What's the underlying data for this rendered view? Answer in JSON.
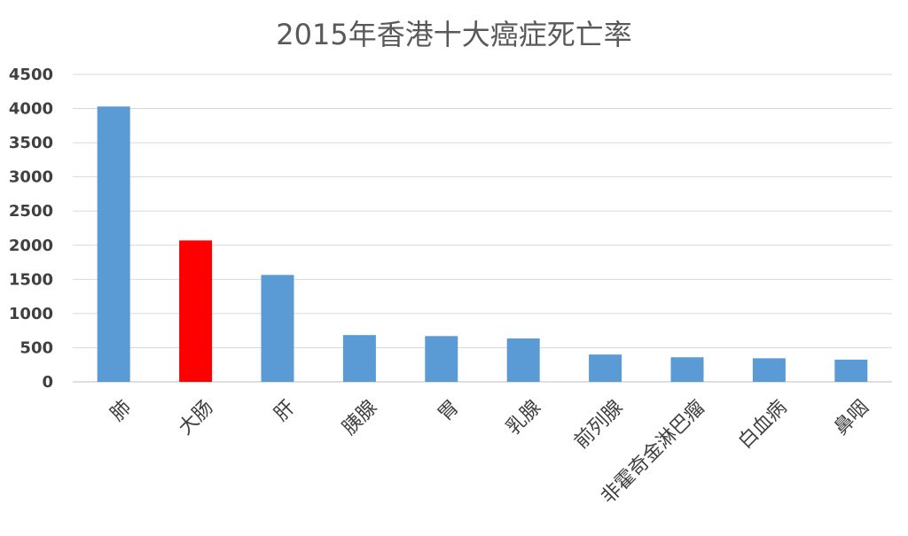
{
  "chart_data": {
    "type": "bar",
    "title": "2015年香港十大癌症死亡率",
    "xlabel": "",
    "ylabel": "",
    "categories": [
      "肺",
      "大肠",
      "肝",
      "胰腺",
      "胃",
      "乳腺",
      "前列腺",
      "非霍奇金淋巴瘤",
      "白血病",
      "鼻咽"
    ],
    "values": [
      4030,
      2070,
      1565,
      685,
      670,
      635,
      400,
      360,
      345,
      325
    ],
    "highlight_index": 1,
    "ylim": [
      0,
      4500
    ],
    "yticks": [
      0,
      500,
      1000,
      1500,
      2000,
      2500,
      3000,
      3500,
      4000,
      4500
    ],
    "grid": true,
    "legend": "none",
    "colors": {
      "bar": "#5b9bd5",
      "highlight": "#ff0000"
    }
  }
}
